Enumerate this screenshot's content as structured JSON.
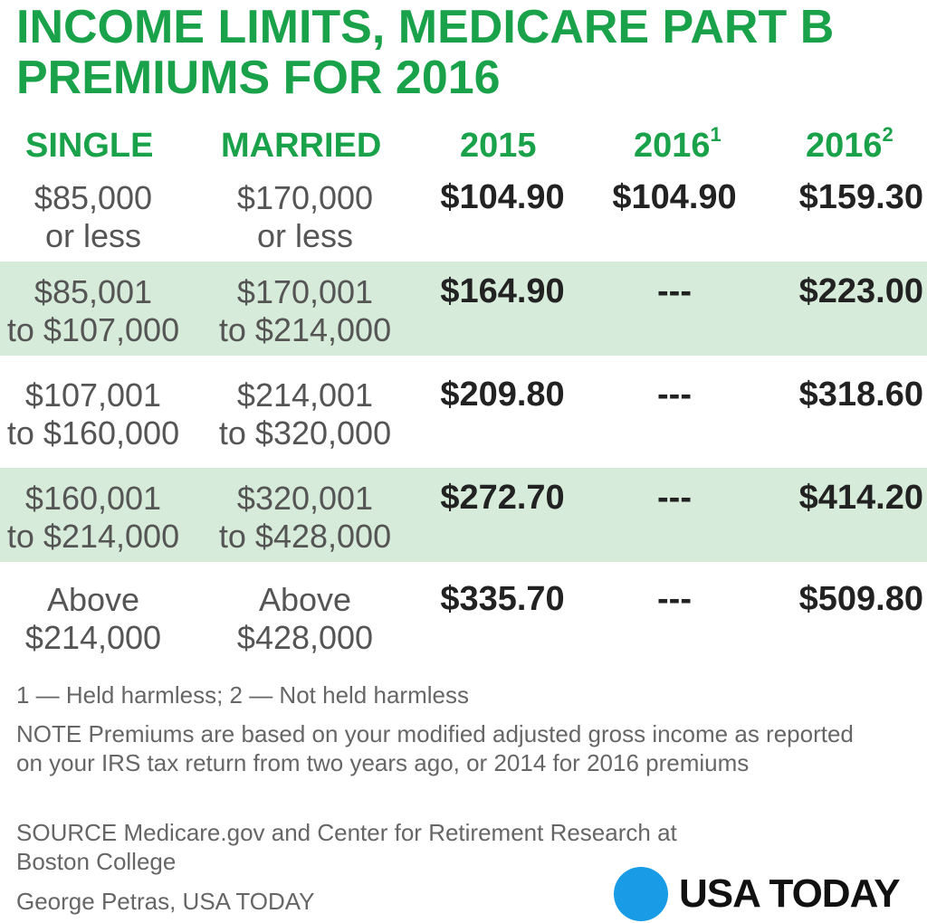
{
  "title": {
    "line1": "INCOME LIMITS, MEDICARE PART B",
    "line2": "PREMIUMS FOR 2016"
  },
  "headers": {
    "single": "SINGLE",
    "married": "MARRIED",
    "y2015": "2015",
    "y2016a": "2016",
    "y2016a_sup": "1",
    "y2016b": "2016",
    "y2016b_sup": "2"
  },
  "rows": [
    {
      "single": [
        "$85,000",
        "or less"
      ],
      "married": [
        "$170,000",
        "or less"
      ],
      "v2015": "$104.90",
      "v2016a": "$104.90",
      "v2016b": "$159.30"
    },
    {
      "single": [
        "$85,001",
        "to $107,000"
      ],
      "married": [
        "$170,001",
        "to $214,000"
      ],
      "v2015": "$164.90",
      "v2016a": "---",
      "v2016b": "$223.00"
    },
    {
      "single": [
        "$107,001",
        "to $160,000"
      ],
      "married": [
        "$214,001",
        "to $320,000"
      ],
      "v2015": "$209.80",
      "v2016a": "---",
      "v2016b": "$318.60"
    },
    {
      "single": [
        "$160,001",
        "to $214,000"
      ],
      "married": [
        "$320,001",
        "to $428,000"
      ],
      "v2015": "$272.70",
      "v2016a": "---",
      "v2016b": "$414.20"
    },
    {
      "single": [
        "Above",
        "$214,000"
      ],
      "married": [
        "Above",
        "$428,000"
      ],
      "v2015": "$335.70",
      "v2016a": "---",
      "v2016b": "$509.80"
    }
  ],
  "footer": {
    "footnote": "1 — Held harmless; 2 — Not held harmless",
    "note": "NOTE Premiums are based on your modified adjusted gross income as reported on your IRS tax return from two years ago, or 2014 for 2016 premiums",
    "source": "SOURCE Medicare.gov and Center for Retirement Research at Boston College",
    "credit": "George Petras, USA TODAY"
  },
  "logo": {
    "text": "USA TODAY",
    "dot_color": "#1a9be6"
  },
  "colors": {
    "accent": "#1aa24a",
    "band": "#d6ebd9"
  },
  "chart_data": {
    "type": "table",
    "columns": [
      "SINGLE",
      "MARRIED",
      "2015",
      "2016¹",
      "2016²"
    ],
    "rows": [
      [
        "$85,000 or less",
        "$170,000 or less",
        "$104.90",
        "$104.90",
        "$159.30"
      ],
      [
        "$85,001 to $107,000",
        "$170,001 to $214,000",
        "$164.90",
        "---",
        "$223.00"
      ],
      [
        "$107,001 to $160,000",
        "$214,001 to $320,000",
        "$209.80",
        "---",
        "$318.60"
      ],
      [
        "$160,001 to $214,000",
        "$320,001 to $428,000",
        "$272.70",
        "---",
        "$414.20"
      ],
      [
        "Above $214,000",
        "Above $428,000",
        "$335.70",
        "---",
        "$509.80"
      ]
    ]
  }
}
